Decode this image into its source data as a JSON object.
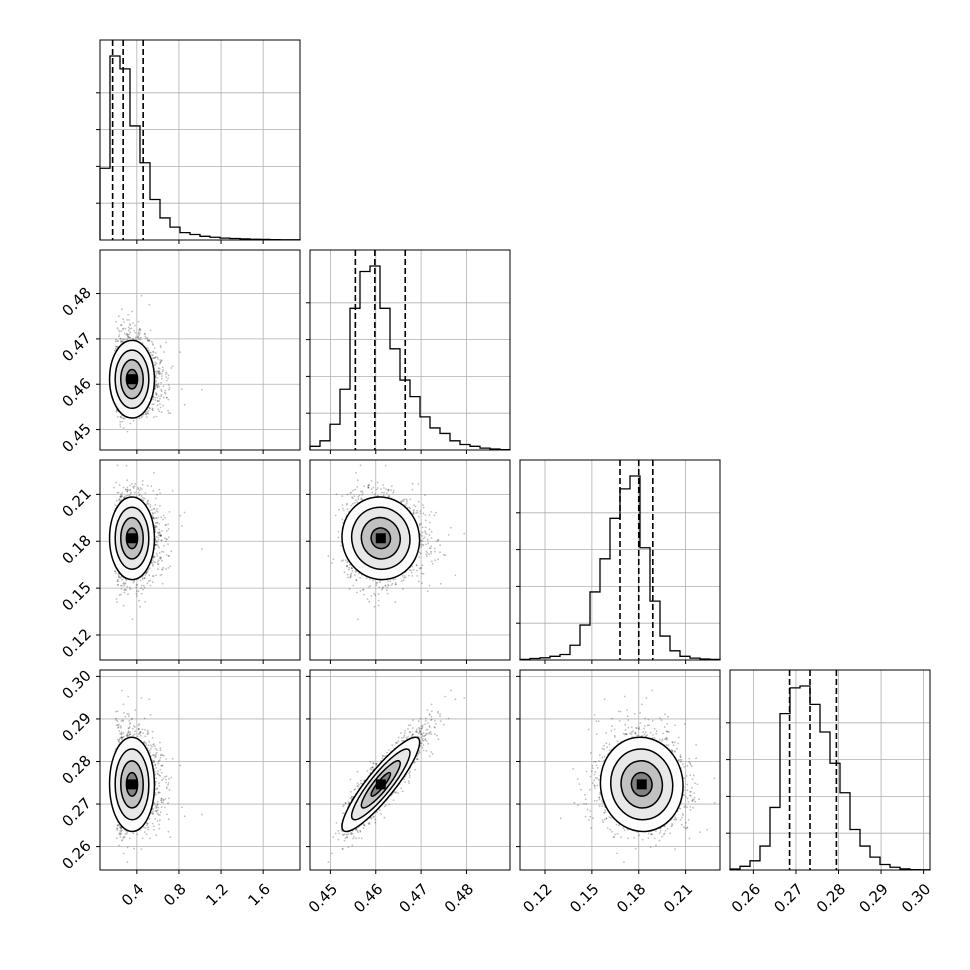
{
  "chart_data": {
    "type": "corner",
    "parameters": [
      {
        "range": [
          0.05,
          1.95
        ],
        "ticks": [
          0.4,
          0.8,
          1.2,
          1.6
        ],
        "tick_labels": [
          "0.4",
          "0.8",
          "1.2",
          "1.6"
        ],
        "quantiles": [
          0.17,
          0.27,
          0.46
        ]
      },
      {
        "range": [
          0.4455,
          0.4896
        ],
        "ticks": [
          0.45,
          0.46,
          0.47,
          0.48
        ],
        "tick_labels": [
          "0.45",
          "0.46",
          "0.47",
          "0.48"
        ],
        "quantiles": [
          0.4555,
          0.4598,
          0.4665
        ]
      },
      {
        "range": [
          0.104,
          0.232
        ],
        "ticks": [
          0.12,
          0.15,
          0.18,
          0.21
        ],
        "tick_labels": [
          "0.12",
          "0.15",
          "0.18",
          "0.21"
        ],
        "quantiles": [
          0.168,
          0.18,
          0.189
        ]
      },
      {
        "range": [
          0.2545,
          0.3015
        ],
        "ticks": [
          0.26,
          0.27,
          0.28,
          0.29,
          0.3
        ],
        "tick_labels": [
          "0.26",
          "0.27",
          "0.28",
          "0.29",
          "0.30"
        ],
        "quantiles": [
          0.2685,
          0.2733,
          0.2795
        ]
      }
    ],
    "histograms": [
      [
        0.39,
        1.0,
        0.93,
        0.62,
        0.42,
        0.22,
        0.12,
        0.07,
        0.04,
        0.03,
        0.02,
        0.015,
        0.01,
        0.008,
        0.006,
        0.004,
        0.003,
        0.002,
        0.001,
        0.001
      ],
      [
        0.02,
        0.05,
        0.14,
        0.33,
        0.77,
        0.97,
        1.0,
        0.77,
        0.55,
        0.38,
        0.29,
        0.18,
        0.12,
        0.09,
        0.05,
        0.03,
        0.02,
        0.01,
        0.005,
        0.002
      ],
      [
        0.003,
        0.008,
        0.012,
        0.02,
        0.03,
        0.08,
        0.19,
        0.37,
        0.55,
        0.77,
        0.93,
        1.0,
        0.61,
        0.32,
        0.13,
        0.05,
        0.02,
        0.01,
        0.005,
        0.003
      ],
      [
        0.005,
        0.02,
        0.05,
        0.13,
        0.34,
        0.85,
        0.99,
        1.0,
        0.9,
        0.75,
        0.58,
        0.42,
        0.22,
        0.13,
        0.07,
        0.03,
        0.015,
        0.006,
        0.002,
        0.001
      ]
    ],
    "hist_quantile_lines": "dashed",
    "grid": true,
    "contours": true,
    "scatter_points": true
  }
}
